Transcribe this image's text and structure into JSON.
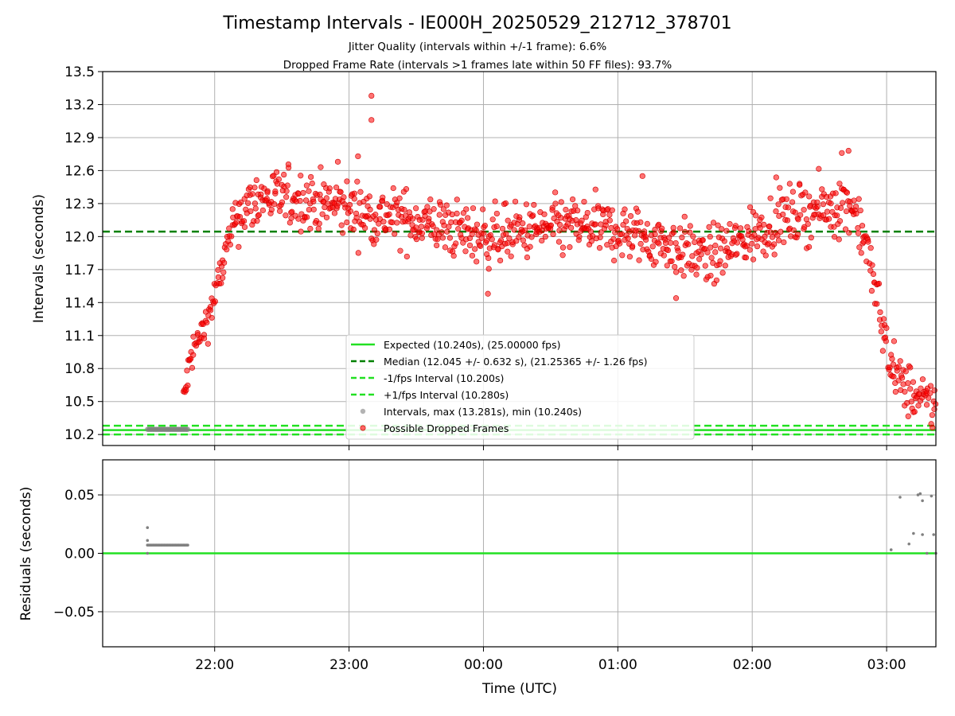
{
  "title": "Timestamp Intervals - IE000H_20250529_212712_378701",
  "subtitle_1": "Jitter Quality (intervals within +/-1 frame): 6.6%",
  "subtitle_2": "Dropped Frame Rate (intervals >1 frames late within 50 FF files): 93.7%",
  "colors": {
    "expected": "#22e022",
    "median": "#008000",
    "fps_band": "#22e022",
    "dropped": "#ff0000",
    "interval": "#808080",
    "grid": "#b0b0b0"
  },
  "chart_data": [
    {
      "type": "scatter",
      "ylabel": "Intervals (seconds)",
      "xlim": [
        "21:10",
        "03:22"
      ],
      "ylim": [
        10.1,
        13.5
      ],
      "y_ticks": [
        "10.2",
        "10.5",
        "10.8",
        "11.1",
        "11.4",
        "11.7",
        "12.0",
        "12.3",
        "12.6",
        "12.9",
        "13.2",
        "13.5"
      ],
      "grid": true,
      "legend": {
        "position": "lower-center",
        "entries": [
          {
            "label": "Expected (10.240s), (25.00000 fps)",
            "style": "solid-line",
            "color": "#22e022"
          },
          {
            "label": "Median (12.045 +/- 0.632 s), (21.25365 +/- 1.26 fps)",
            "style": "dashed-line",
            "color": "#008000"
          },
          {
            "label": "-1/fps Interval (10.200s)",
            "style": "dashed-line",
            "color": "#22e022"
          },
          {
            "label": "+1/fps Interval (10.280s)",
            "style": "dashed-line",
            "color": "#22e022"
          },
          {
            "label": "Intervals, max (13.281s), min (10.240s)",
            "style": "marker",
            "color": "#808080"
          },
          {
            "label": "Possible Dropped Frames",
            "style": "marker",
            "color": "#ff0000"
          }
        ]
      },
      "reference_lines": {
        "expected": 10.24,
        "median": 12.045,
        "minus_1fps": 10.2,
        "plus_1fps": 10.28
      },
      "series": [
        {
          "name": "Intervals, max (13.281s), min (10.240s)",
          "segments": [
            {
              "from": "21:30",
              "to": "21:48",
              "y": 10.247
            }
          ]
        },
        {
          "name": "Possible Dropped Frames",
          "trend": [
            {
              "x": "21:46",
              "y": 10.5
            },
            {
              "x": "21:50",
              "y": 10.95
            },
            {
              "x": "21:55",
              "y": 11.15
            },
            {
              "x": "22:00",
              "y": 11.45
            },
            {
              "x": "22:05",
              "y": 11.85
            },
            {
              "x": "22:10",
              "y": 12.2
            },
            {
              "x": "22:20",
              "y": 12.35
            },
            {
              "x": "22:35",
              "y": 12.35
            },
            {
              "x": "22:50",
              "y": 12.3
            },
            {
              "x": "23:10",
              "y": 12.2
            },
            {
              "x": "23:30",
              "y": 12.15
            },
            {
              "x": "23:50",
              "y": 12.05
            },
            {
              "x": "00:00",
              "y": 12.0
            },
            {
              "x": "00:20",
              "y": 12.05
            },
            {
              "x": "00:40",
              "y": 12.1
            },
            {
              "x": "01:00",
              "y": 12.05
            },
            {
              "x": "01:20",
              "y": 11.95
            },
            {
              "x": "01:40",
              "y": 11.8
            },
            {
              "x": "01:55",
              "y": 11.95
            },
            {
              "x": "02:10",
              "y": 12.15
            },
            {
              "x": "02:30",
              "y": 12.25
            },
            {
              "x": "02:45",
              "y": 12.3
            },
            {
              "x": "02:50",
              "y": 12.0
            },
            {
              "x": "02:55",
              "y": 11.5
            },
            {
              "x": "03:00",
              "y": 11.0
            },
            {
              "x": "03:05",
              "y": 10.7
            },
            {
              "x": "03:15",
              "y": 10.5
            },
            {
              "x": "03:22",
              "y": 10.45
            }
          ],
          "outliers": [
            {
              "x": "23:10",
              "y": 13.28
            },
            {
              "x": "23:10",
              "y": 13.06
            },
            {
              "x": "23:04",
              "y": 12.73
            },
            {
              "x": "02:43",
              "y": 12.78
            },
            {
              "x": "02:40",
              "y": 12.76
            },
            {
              "x": "22:55",
              "y": 12.68
            },
            {
              "x": "01:11",
              "y": 12.55
            },
            {
              "x": "01:26",
              "y": 11.44
            },
            {
              "x": "00:02",
              "y": 11.48
            }
          ]
        }
      ]
    },
    {
      "type": "scatter",
      "xlabel": "Time (UTC)",
      "ylabel": "Residuals (seconds)",
      "xlim": [
        "21:10",
        "03:22"
      ],
      "ylim": [
        -0.08,
        0.08
      ],
      "x_ticks": [
        "22:00",
        "23:00",
        "00:00",
        "01:00",
        "02:00",
        "03:00"
      ],
      "y_ticks": [
        "−0.05",
        "0.00",
        "0.05"
      ],
      "grid": true,
      "series": [
        {
          "name": "Residuals",
          "points": [
            {
              "x": "21:30",
              "y": 0.022
            },
            {
              "x": "21:30",
              "y": 0.011
            },
            {
              "x": "21:30",
              "y": 0.0
            },
            {
              "x": "03:02",
              "y": 0.003
            },
            {
              "x": "03:06",
              "y": 0.048
            },
            {
              "x": "03:10",
              "y": 0.008
            },
            {
              "x": "03:12",
              "y": 0.017
            },
            {
              "x": "03:14",
              "y": 0.05
            },
            {
              "x": "03:15",
              "y": 0.051
            },
            {
              "x": "03:16",
              "y": 0.045
            },
            {
              "x": "03:16",
              "y": 0.016
            },
            {
              "x": "03:18",
              "y": 0.0
            },
            {
              "x": "03:20",
              "y": 0.049
            },
            {
              "x": "03:21",
              "y": 0.016
            },
            {
              "x": "03:22",
              "y": 0.0
            }
          ],
          "segments": [
            {
              "from": "21:30",
              "to": "21:48",
              "y": 0.007
            }
          ]
        }
      ]
    }
  ]
}
